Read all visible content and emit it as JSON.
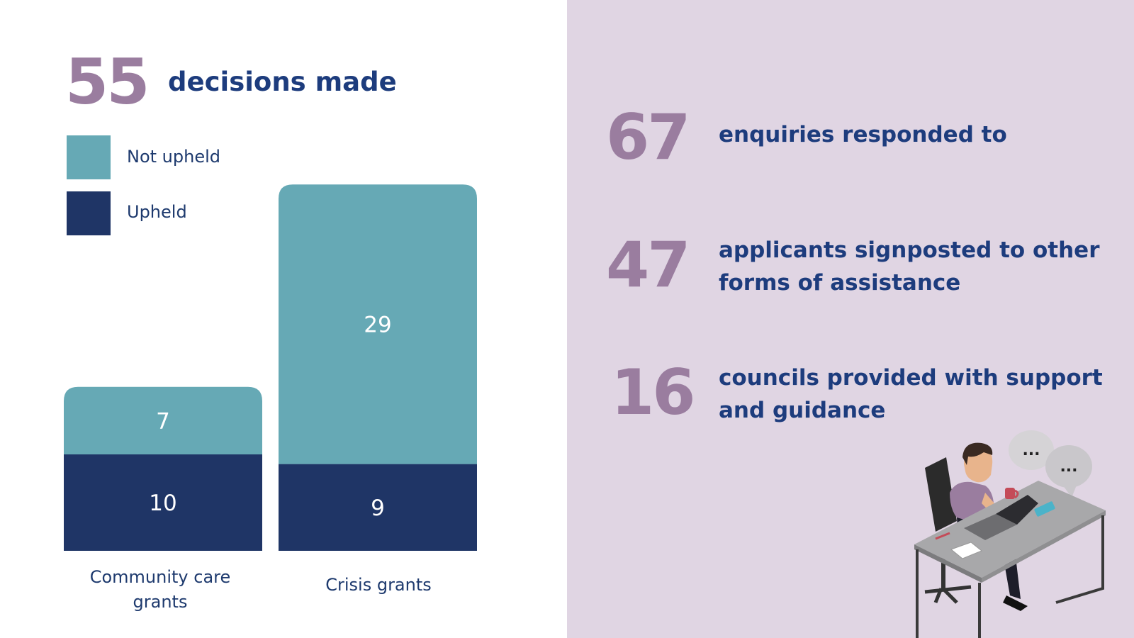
{
  "headline": {
    "number": "55",
    "label": "decisions made"
  },
  "stats": [
    {
      "number": "67",
      "label_lines": [
        "enquiries responded to"
      ]
    },
    {
      "number": "47",
      "label_lines": [
        "applicants signposted to other",
        "forms of assistance"
      ]
    },
    {
      "number": "16",
      "label_lines": [
        "councils provided with support",
        "and guidance"
      ]
    }
  ],
  "colors": {
    "not_upheld": "#66a9b5",
    "upheld": "#1f3566",
    "accent_number": "#9a7d9f",
    "heading": "#1d3c7d",
    "right_background": "#e0d5e3"
  },
  "chart_data": {
    "type": "bar",
    "stacked": true,
    "categories": [
      "Community care grants",
      "Crisis grants"
    ],
    "category_label_lines": [
      [
        "Community care",
        "grants"
      ],
      [
        "Crisis grants"
      ]
    ],
    "series": [
      {
        "name": "Upheld",
        "values": [
          10,
          9
        ]
      },
      {
        "name": "Not upheld",
        "values": [
          7,
          29
        ]
      }
    ],
    "legend": {
      "position": "top-left",
      "entries": [
        "Not upheld",
        "Upheld"
      ]
    },
    "grid": false,
    "ylim": [
      0,
      38
    ]
  },
  "illustration": {
    "icon": "person-at-desk-icon",
    "bubble_text": [
      "...",
      "..."
    ]
  }
}
